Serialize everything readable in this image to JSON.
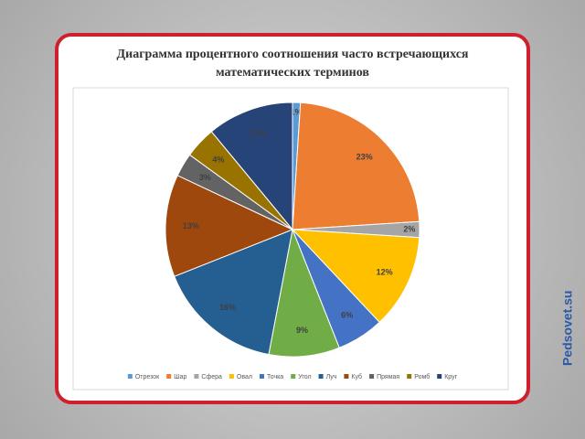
{
  "chart_data": {
    "type": "pie",
    "title": "Диаграмма процентного соотношения часто встречающихся математических терминов",
    "categories": [
      "Отрезок",
      "Шар",
      "Сфера",
      "Овал",
      "Точка",
      "Угол",
      "Луч",
      "Куб",
      "Прямая",
      "Ромб",
      "Круг"
    ],
    "values": [
      1,
      23,
      2,
      12,
      6,
      9,
      16,
      13,
      3,
      4,
      11
    ],
    "value_labels": [
      "1%",
      "23%",
      "2%",
      "12%",
      "6%",
      "9%",
      "16%",
      "13%",
      "3%",
      "4%",
      "11%"
    ],
    "colors": [
      "#5b9bd5",
      "#ed7d31",
      "#a5a5a5",
      "#ffc000",
      "#4472c4",
      "#70ad47",
      "#255e91",
      "#9e480e",
      "#636363",
      "#997300",
      "#264478"
    ],
    "legend": "bottom"
  },
  "watermark": "Pedsovet.su"
}
